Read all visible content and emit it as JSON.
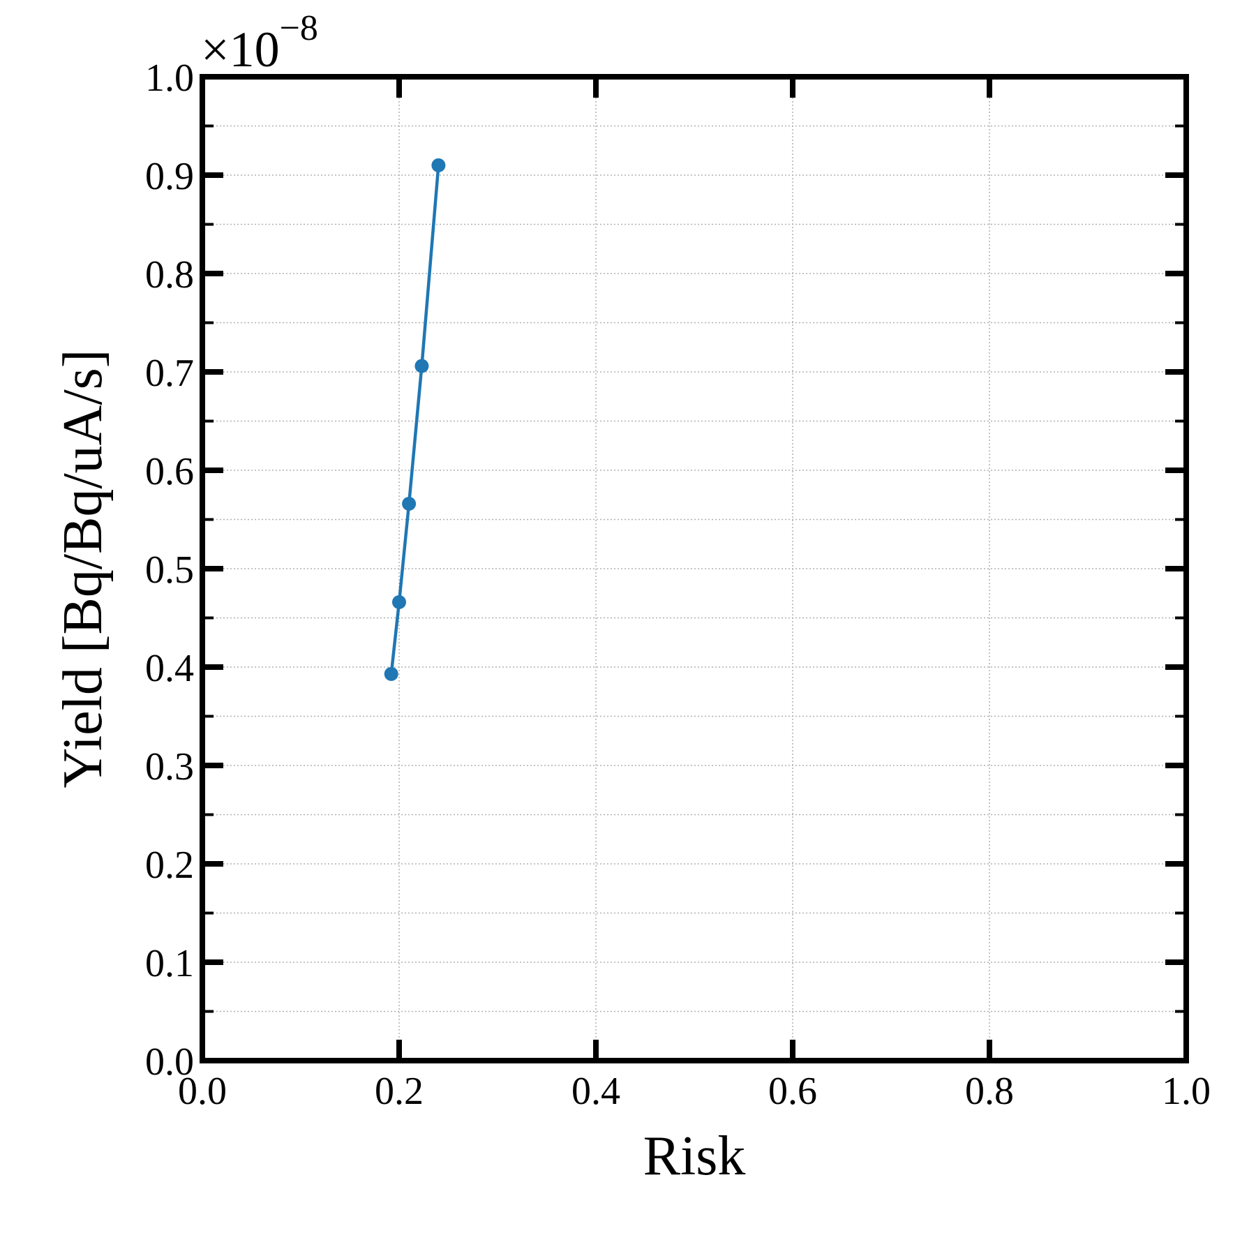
{
  "chart_data": {
    "type": "line",
    "title": "",
    "xlabel": "Risk",
    "ylabel": "Yield [Bq/Bq/uA/s]",
    "xlim": [
      0.0,
      1.0
    ],
    "ylim": [
      0.0,
      1.0
    ],
    "y_multiplier": {
      "base": "×10",
      "exponent": "−8"
    },
    "x_ticks": [
      "0.0",
      "0.2",
      "0.4",
      "0.6",
      "0.8",
      "1.0"
    ],
    "y_ticks": [
      "0.0",
      "0.1",
      "0.2",
      "0.3",
      "0.4",
      "0.5",
      "0.6",
      "0.7",
      "0.8",
      "0.9",
      "1.0"
    ],
    "x_tick_values": [
      0.0,
      0.2,
      0.4,
      0.6,
      0.8,
      1.0
    ],
    "y_tick_values": [
      0.0,
      0.1,
      0.2,
      0.3,
      0.4,
      0.5,
      0.6,
      0.7,
      0.8,
      0.9,
      1.0
    ],
    "y_minor_tick_values": [
      0.05,
      0.15,
      0.25,
      0.35,
      0.45,
      0.55,
      0.65,
      0.75,
      0.85,
      0.95
    ],
    "grid": true,
    "legend": "none",
    "series": [
      {
        "color": "#1f77b4",
        "marker": "circle",
        "x": [
          0.192,
          0.2,
          0.21,
          0.223,
          0.24
        ],
        "y": [
          0.393,
          0.466,
          0.566,
          0.706,
          0.91
        ]
      }
    ]
  }
}
